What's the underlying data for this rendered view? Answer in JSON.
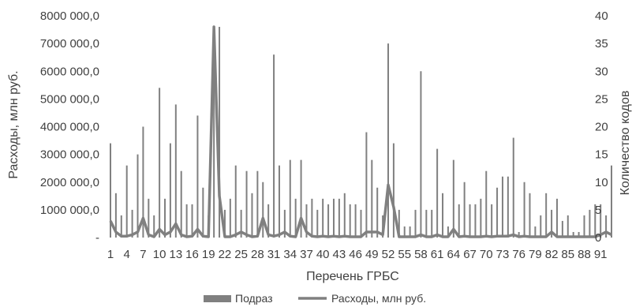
{
  "chart_data": {
    "type": "bar",
    "title": "",
    "xlabel": "Перечень ГРБС",
    "ylabel_left": "Расходы, млн  руб.",
    "ylabel_right": "Количество кодов",
    "ylim_left": [
      0,
      8000000
    ],
    "ylim_right": [
      0,
      40
    ],
    "yticks_left": [
      "-",
      "1000 000,0",
      "2000 000,0",
      "3000 000,0",
      "4000 000,0",
      "5000 000,0",
      "6000 000,0",
      "7000 000,0",
      "8000 000,0"
    ],
    "yticks_right": [
      "0",
      "5",
      "10",
      "15",
      "20",
      "25",
      "30",
      "35",
      "40"
    ],
    "xtick_labels": [
      "1",
      "4",
      "7",
      "10",
      "13",
      "16",
      "19",
      "22",
      "25",
      "28",
      "31",
      "34",
      "37",
      "40",
      "43",
      "46",
      "49",
      "52",
      "55",
      "58",
      "61",
      "64",
      "67",
      "70",
      "73",
      "76",
      "79",
      "82",
      "85",
      "88",
      "91"
    ],
    "x": [
      1,
      2,
      3,
      4,
      5,
      6,
      7,
      8,
      9,
      10,
      11,
      12,
      13,
      14,
      15,
      16,
      17,
      18,
      19,
      20,
      21,
      22,
      23,
      24,
      25,
      26,
      27,
      28,
      29,
      30,
      31,
      32,
      33,
      34,
      35,
      36,
      37,
      38,
      39,
      40,
      41,
      42,
      43,
      44,
      45,
      46,
      47,
      48,
      49,
      50,
      51,
      52,
      53,
      54,
      55,
      56,
      57,
      58,
      59,
      60,
      61,
      62,
      63,
      64,
      65,
      66,
      67,
      68,
      69,
      70,
      71,
      72,
      73,
      74,
      75,
      76,
      77,
      78,
      79,
      80,
      81,
      82,
      83,
      84,
      85,
      86,
      87,
      88,
      89,
      90,
      91,
      92,
      93
    ],
    "legend_position": "bottom",
    "grid": false,
    "series": [
      {
        "name": "Подраз",
        "kind": "bar",
        "axis": "right",
        "color": "#808080",
        "values": [
          17,
          8,
          4,
          13,
          5,
          15,
          20,
          7,
          4,
          27,
          7,
          17,
          24,
          12,
          6,
          6,
          22,
          9,
          4,
          38,
          38,
          5,
          7,
          13,
          5,
          12,
          8,
          12,
          10,
          6,
          33,
          13,
          5,
          14,
          7,
          14,
          6,
          7,
          5,
          7,
          6,
          7,
          7,
          8,
          6,
          6,
          5,
          19,
          14,
          9,
          4,
          35,
          17,
          5,
          2,
          2,
          5,
          30,
          5,
          5,
          16,
          8,
          2,
          14,
          6,
          10,
          6,
          6,
          7,
          12,
          6,
          9,
          11,
          11,
          18,
          1,
          10,
          8,
          2,
          4,
          8,
          5,
          7,
          3,
          4,
          1,
          1,
          4,
          5,
          6,
          6,
          4,
          13
        ]
      },
      {
        "name": "Расходы, млн  руб.",
        "kind": "line",
        "axis": "left",
        "color": "#808080",
        "values": [
          600000,
          200000,
          50000,
          50000,
          100000,
          200000,
          700000,
          100000,
          30000,
          300000,
          100000,
          200000,
          500000,
          100000,
          30000,
          50000,
          300000,
          50000,
          30000,
          7600000,
          1500000,
          30000,
          30000,
          100000,
          200000,
          100000,
          30000,
          50000,
          700000,
          100000,
          50000,
          100000,
          200000,
          50000,
          30000,
          700000,
          200000,
          50000,
          30000,
          50000,
          30000,
          50000,
          30000,
          50000,
          30000,
          30000,
          30000,
          200000,
          200000,
          200000,
          100000,
          1900000,
          1100000,
          30000,
          30000,
          30000,
          30000,
          100000,
          30000,
          30000,
          100000,
          30000,
          30000,
          300000,
          30000,
          50000,
          30000,
          30000,
          30000,
          50000,
          30000,
          50000,
          50000,
          50000,
          100000,
          30000,
          50000,
          30000,
          30000,
          30000,
          30000,
          200000,
          30000,
          30000,
          30000,
          30000,
          30000,
          30000,
          30000,
          30000,
          100000,
          200000,
          100000
        ]
      }
    ]
  }
}
